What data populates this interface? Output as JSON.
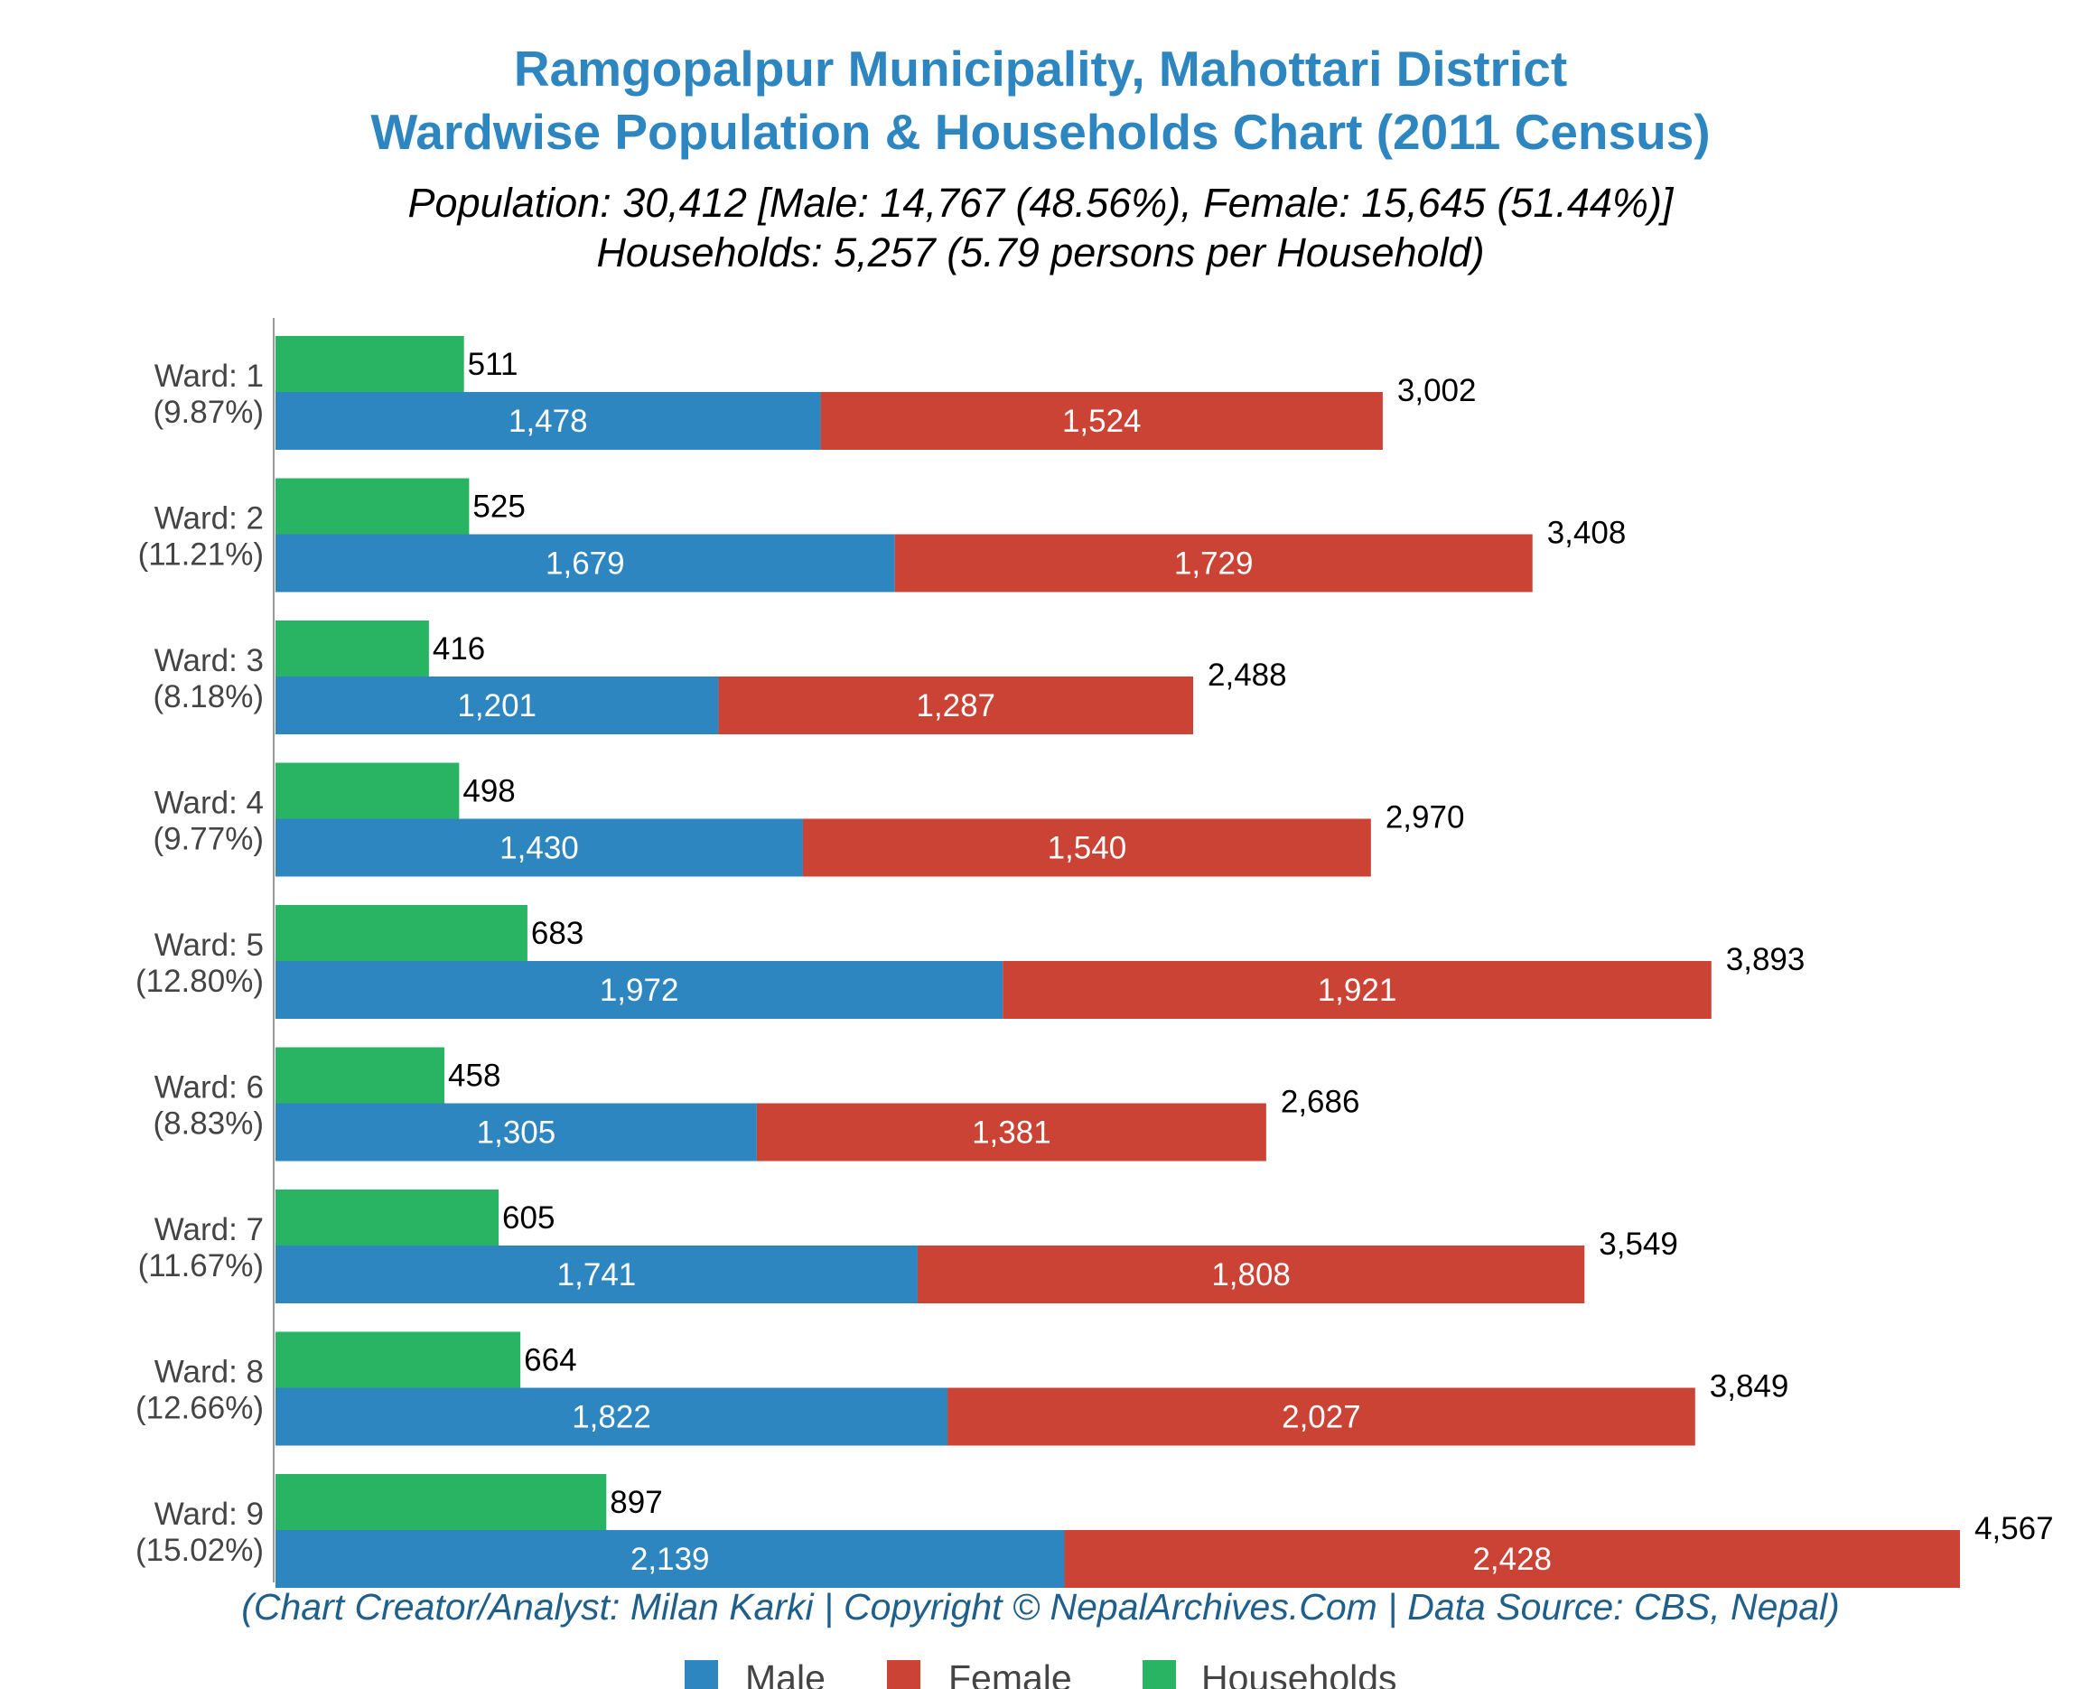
{
  "title_line1": "Ramgopalpur Municipality, Mahottari District",
  "title_line2": "Wardwise Population & Households Chart (2011 Census)",
  "subtitle_line1": "Population: 30,412 [Male: 14,767 (48.56%), Female: 15,645 (51.44%)]",
  "subtitle_line2": "Households: 5,257 (5.79 persons per Household)",
  "credit": "(Chart Creator/Analyst: Milan Karki | Copyright © NepalArchives.Com | Data Source: CBS, Nepal)",
  "legend": {
    "male": "Male",
    "female": "Female",
    "households": "Households"
  },
  "colors": {
    "male": "#2e86c1",
    "female": "#cb4335",
    "households": "#28b463",
    "title": "#2e86c1",
    "axis": "#999999"
  },
  "chart_data": {
    "type": "bar",
    "orientation": "horizontal",
    "stacked_series": [
      "Male",
      "Female"
    ],
    "categories": [
      "Ward: 1",
      "Ward: 2",
      "Ward: 3",
      "Ward: 4",
      "Ward: 5",
      "Ward: 6",
      "Ward: 7",
      "Ward: 8",
      "Ward: 9"
    ],
    "category_percents": [
      "(9.87%)",
      "(11.21%)",
      "(8.18%)",
      "(9.77%)",
      "(12.80%)",
      "(8.83%)",
      "(11.67%)",
      "(12.66%)",
      "(15.02%)"
    ],
    "series": [
      {
        "name": "Male",
        "values": [
          1478,
          1679,
          1201,
          1430,
          1972,
          1305,
          1741,
          1822,
          2139
        ],
        "labels": [
          "1,478",
          "1,679",
          "1,201",
          "1,430",
          "1,972",
          "1,305",
          "1,741",
          "1,822",
          "2,139"
        ]
      },
      {
        "name": "Female",
        "values": [
          1524,
          1729,
          1287,
          1540,
          1921,
          1381,
          1808,
          2027,
          2428
        ],
        "labels": [
          "1,524",
          "1,729",
          "1,287",
          "1,540",
          "1,921",
          "1,381",
          "1,808",
          "2,027",
          "2,428"
        ]
      },
      {
        "name": "Households",
        "values": [
          511,
          525,
          416,
          498,
          683,
          458,
          605,
          664,
          897
        ],
        "labels": [
          "511",
          "525",
          "416",
          "498",
          "683",
          "458",
          "605",
          "664",
          "897"
        ]
      }
    ],
    "totals": [
      3002,
      3408,
      2488,
      2970,
      3893,
      2686,
      3549,
      3849,
      4567
    ],
    "total_labels": [
      "3,002",
      "3,408",
      "2,488",
      "2,970",
      "3,893",
      "2,686",
      "3,549",
      "3,849",
      "4,567"
    ],
    "xlim": [
      0,
      4567
    ],
    "grid": false,
    "legend_position": "bottom"
  }
}
